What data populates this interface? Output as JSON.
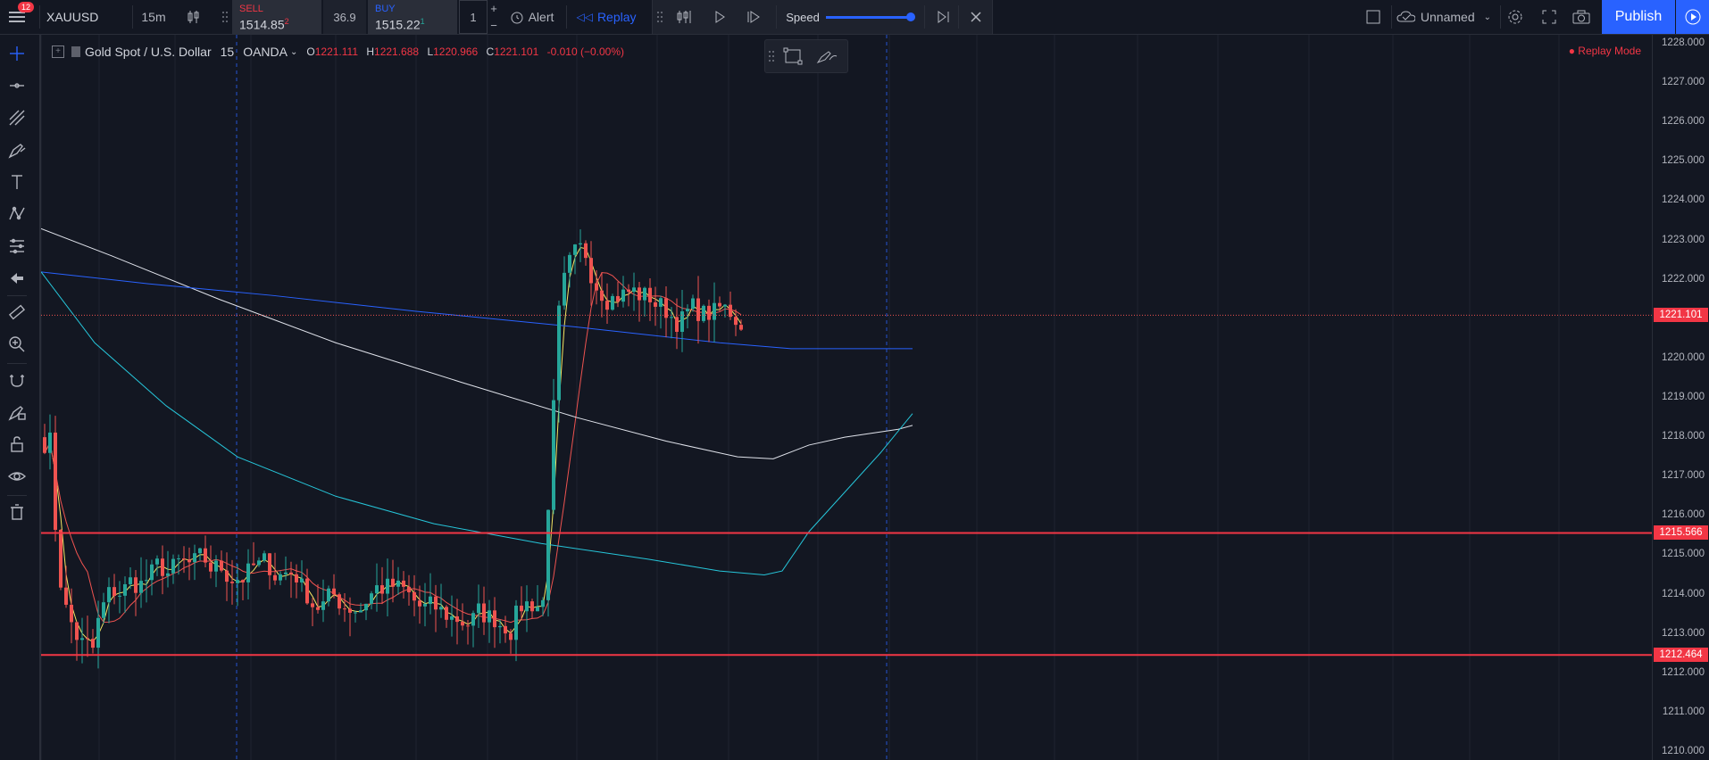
{
  "topbar": {
    "notification_count": "12",
    "symbol": "XAUUSD",
    "interval": "15m",
    "sell_label": "SELL",
    "sell_price": "1514.85",
    "sell_sup": "2",
    "spread": "36.9",
    "buy_label": "BUY",
    "buy_price": "1515.22",
    "buy_sup": "1",
    "quantity": "1",
    "alert_label": "Alert",
    "replay_label": "Replay",
    "speed_label": "Speed",
    "speed_level": 0.95,
    "layout_name": "Unnamed",
    "publish_label": "Publish"
  },
  "legend": {
    "title": "Gold Spot / U.S. Dollar",
    "interval": "15",
    "source": "OANDA",
    "o_key": "O",
    "o_val": "1221.111",
    "h_key": "H",
    "h_val": "1221.688",
    "l_key": "L",
    "l_val": "1220.966",
    "c_key": "C",
    "c_val": "1221.101",
    "change": "-0.010 (−0.00%)"
  },
  "replay_mode": "Replay Mode",
  "price_scale": {
    "labels": [
      "1228.000",
      "1227.000",
      "1226.000",
      "1225.000",
      "1224.000",
      "1223.000",
      "1222.000",
      "1221.000",
      "1220.000",
      "1219.000",
      "1218.000",
      "1217.000",
      "1216.000",
      "1215.000",
      "1214.000",
      "1213.000",
      "1212.000",
      "1211.000",
      "1210.000"
    ],
    "last_price": "1221.101",
    "level_high": "1215.566",
    "level_low": "1212.464"
  },
  "colors": {
    "background": "#131722",
    "up": "#26a69a",
    "down": "#ef5350",
    "accent": "#2962ff",
    "level": "#f23645"
  },
  "left_tools": [
    "crosshair-icon",
    "trend-line-icon",
    "fib-icon",
    "brush-icon",
    "text-icon",
    "pattern-icon",
    "prediction-icon",
    "back-arrow-icon",
    "ruler-icon",
    "zoom-icon",
    "magnet-icon",
    "lock-draw-icon",
    "lock-icon",
    "eye-icon",
    "trash-icon"
  ]
}
